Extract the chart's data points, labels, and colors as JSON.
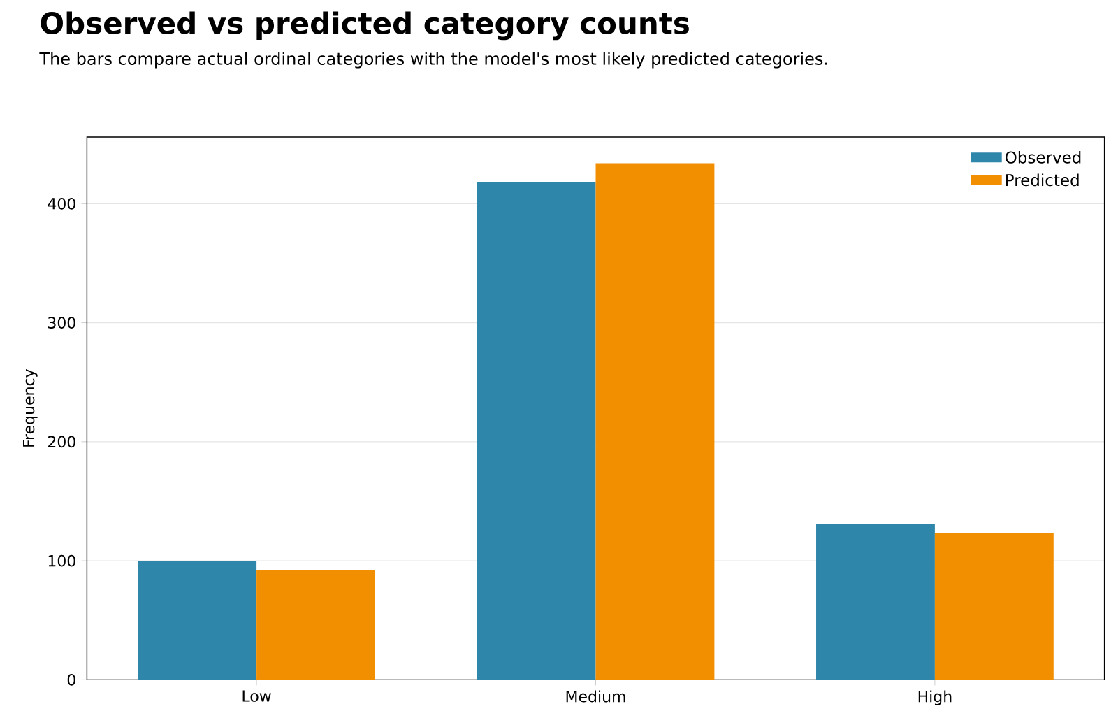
{
  "chart_data": {
    "type": "bar",
    "title": "Observed vs predicted category counts",
    "subtitle": "The bars compare actual ordinal categories with the model's most likely predicted categories.",
    "ylabel": "Frequency",
    "categories": [
      "Low",
      "Medium",
      "High"
    ],
    "series": [
      {
        "name": "Observed",
        "color": "#2e86ab",
        "values": [
          100,
          418,
          131
        ]
      },
      {
        "name": "Predicted",
        "color": "#f18f01",
        "values": [
          92,
          434,
          123
        ]
      }
    ],
    "ylim": [
      0,
      456
    ],
    "yticks": [
      0,
      100,
      200,
      300,
      400
    ],
    "grid": "y",
    "legend": "top right"
  }
}
